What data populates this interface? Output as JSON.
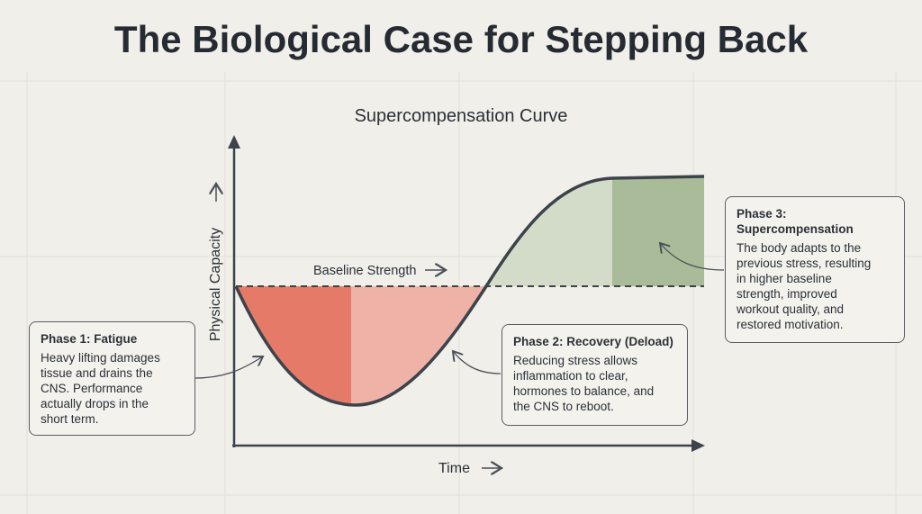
{
  "title": "The Biological Case for Stepping Back",
  "subtitle": "Supercompensation Curve",
  "y_axis_label": "Physical Capacity",
  "x_axis_label": "Time",
  "baseline_label": "Baseline Strength",
  "phases": [
    {
      "title": "Phase 1: Fatigue",
      "lines": [
        "Heavy lifting damages",
        "tissue and drains the",
        "CNS. Performance",
        "actually drops in the",
        "short term."
      ]
    },
    {
      "title": "Phase 2: Recovery (Deload)",
      "lines": [
        "Reducing stress allows",
        "inflammation to clear,",
        "hormones to balance, and",
        "the CNS to reboot."
      ]
    },
    {
      "title": "Phase 3: Supercompensation",
      "lines": [
        "The body adapts to the",
        "previous stress, resulting",
        "in higher baseline",
        "strength, improved",
        "workout quality, and",
        "restored motivation."
      ]
    }
  ]
}
